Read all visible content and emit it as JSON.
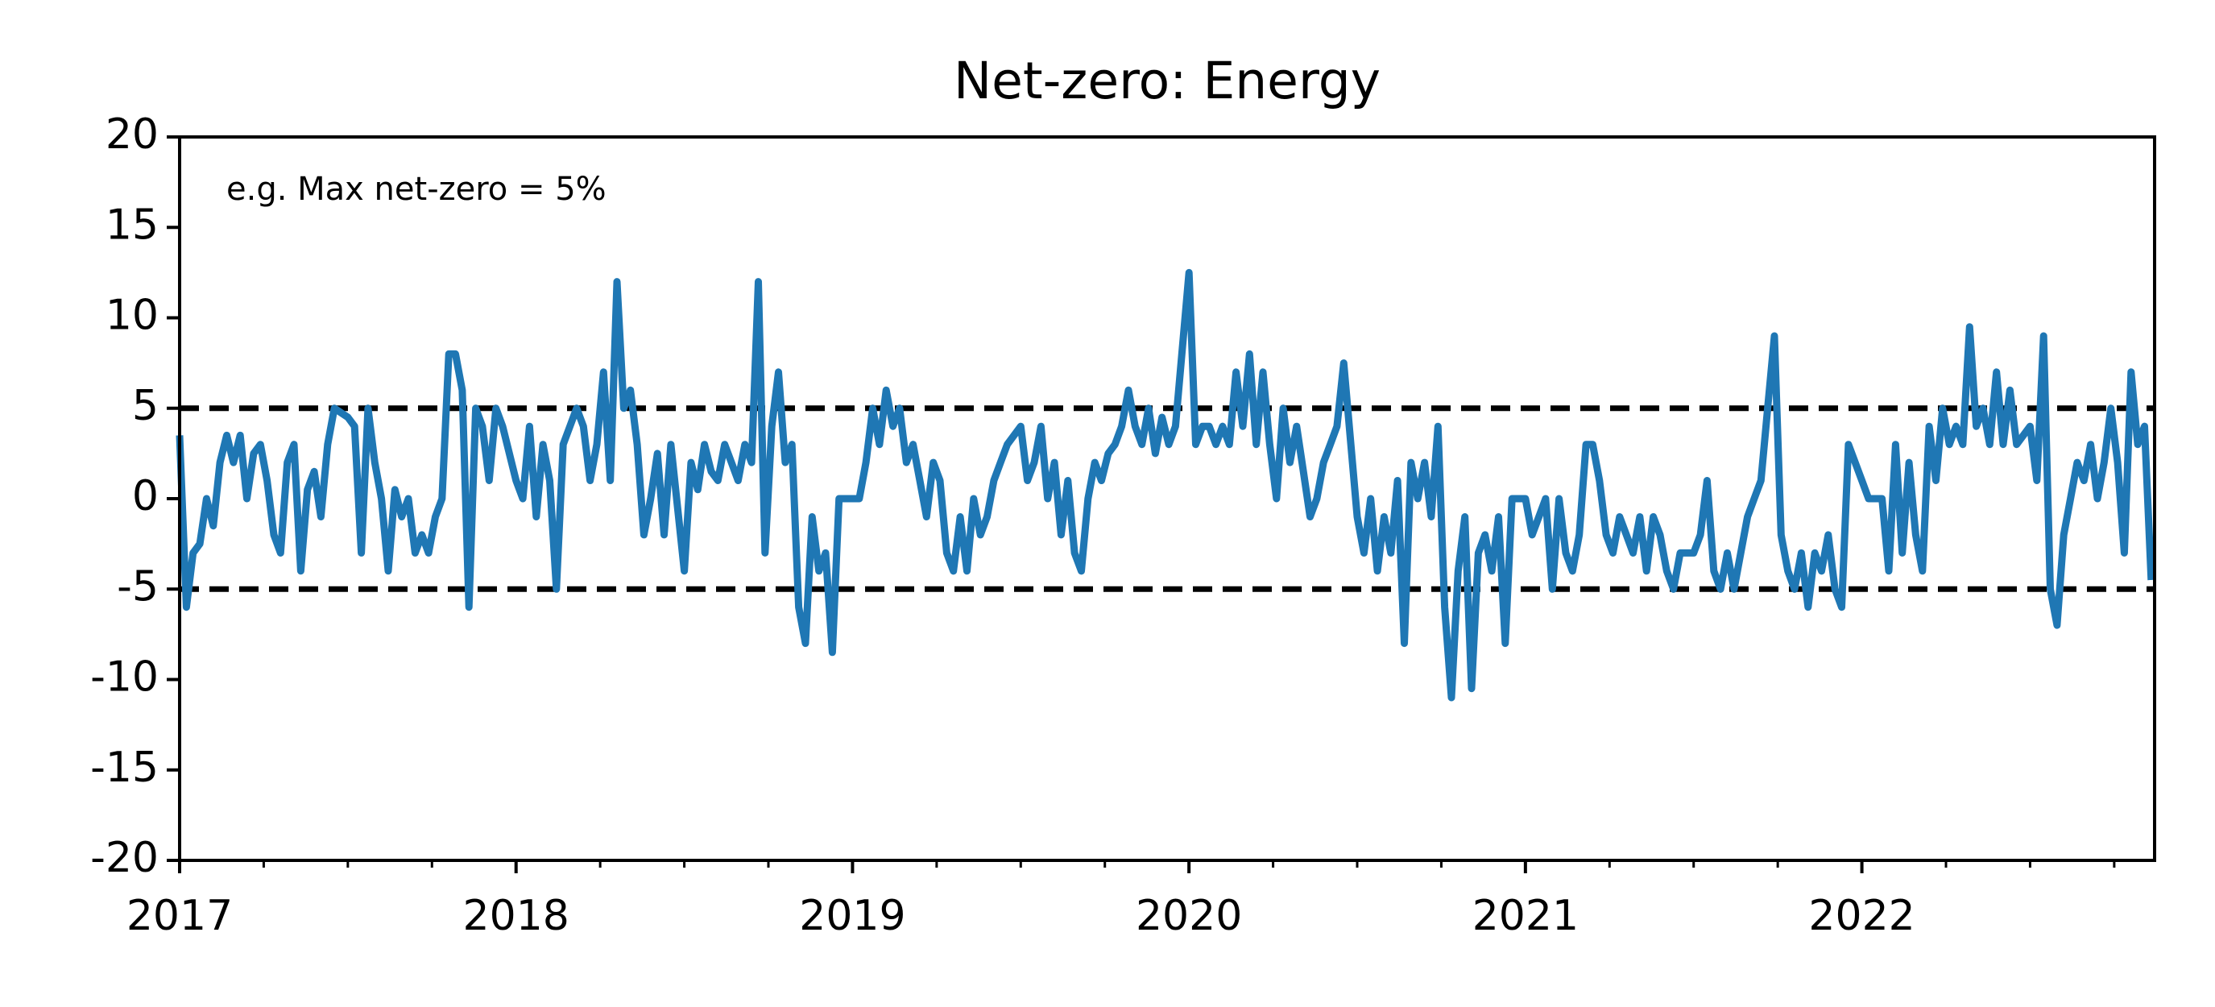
{
  "chart_data": {
    "type": "line",
    "title": "Net-zero: Energy",
    "annotation": "e.g. Max net-zero = 5%",
    "xlim": [
      2017,
      2022.87
    ],
    "xticks": [
      2017,
      2018,
      2019,
      2020,
      2021,
      2022
    ],
    "xminorticks": [
      2017.25,
      2017.5,
      2017.75,
      2018.25,
      2018.5,
      2018.75,
      2019.25,
      2019.5,
      2019.75,
      2020.25,
      2020.5,
      2020.75,
      2021.25,
      2021.5,
      2021.75,
      2022.25,
      2022.5,
      2022.75
    ],
    "ylim": [
      -20,
      20
    ],
    "yticks": [
      -20,
      -15,
      -10,
      -5,
      0,
      5,
      10,
      15,
      20
    ],
    "hlines": {
      "values": [
        5,
        -5
      ],
      "color": "#000000",
      "style": "dashed"
    },
    "series": [
      {
        "color": "#1f77b4",
        "x": [
          2017,
          2017.02,
          2017.04,
          2017.06,
          2017.08,
          2017.1,
          2017.12,
          2017.14,
          2017.16,
          2017.18,
          2017.2,
          2017.22,
          2017.24,
          2017.26,
          2017.28,
          2017.3,
          2017.32,
          2017.34,
          2017.36,
          2017.38,
          2017.4,
          2017.42,
          2017.44,
          2017.46,
          2017.5,
          2017.52,
          2017.54,
          2017.56,
          2017.58,
          2017.6,
          2017.62,
          2017.64,
          2017.66,
          2017.68,
          2017.7,
          2017.72,
          2017.74,
          2017.76,
          2017.78,
          2017.8,
          2017.82,
          2017.84,
          2017.86,
          2017.88,
          2017.9,
          2017.92,
          2017.94,
          2017.96,
          2018,
          2018.02,
          2018.04,
          2018.06,
          2018.08,
          2018.1,
          2018.12,
          2018.14,
          2018.16,
          2018.18,
          2018.2,
          2018.22,
          2018.24,
          2018.26,
          2018.28,
          2018.3,
          2018.32,
          2018.34,
          2018.36,
          2018.38,
          2018.4,
          2018.42,
          2018.44,
          2018.46,
          2018.5,
          2018.52,
          2018.54,
          2018.56,
          2018.58,
          2018.6,
          2018.62,
          2018.64,
          2018.66,
          2018.68,
          2018.7,
          2018.72,
          2018.74,
          2018.76,
          2018.78,
          2018.8,
          2018.82,
          2018.84,
          2018.86,
          2018.88,
          2018.9,
          2018.92,
          2018.94,
          2018.96,
          2019,
          2019.02,
          2019.04,
          2019.06,
          2019.08,
          2019.1,
          2019.12,
          2019.14,
          2019.16,
          2019.18,
          2019.2,
          2019.22,
          2019.24,
          2019.26,
          2019.28,
          2019.3,
          2019.32,
          2019.34,
          2019.36,
          2019.38,
          2019.4,
          2019.42,
          2019.44,
          2019.46,
          2019.5,
          2019.52,
          2019.54,
          2019.56,
          2019.58,
          2019.6,
          2019.62,
          2019.64,
          2019.66,
          2019.68,
          2019.7,
          2019.72,
          2019.74,
          2019.76,
          2019.78,
          2019.8,
          2019.82,
          2019.84,
          2019.86,
          2019.88,
          2019.9,
          2019.92,
          2019.94,
          2019.96,
          2020,
          2020.02,
          2020.04,
          2020.06,
          2020.08,
          2020.1,
          2020.12,
          2020.14,
          2020.16,
          2020.18,
          2020.2,
          2020.22,
          2020.24,
          2020.26,
          2020.28,
          2020.3,
          2020.32,
          2020.34,
          2020.36,
          2020.38,
          2020.4,
          2020.42,
          2020.44,
          2020.46,
          2020.5,
          2020.52,
          2020.54,
          2020.56,
          2020.58,
          2020.6,
          2020.62,
          2020.64,
          2020.66,
          2020.68,
          2020.7,
          2020.72,
          2020.74,
          2020.76,
          2020.78,
          2020.8,
          2020.82,
          2020.84,
          2020.86,
          2020.88,
          2020.9,
          2020.92,
          2020.94,
          2020.96,
          2021,
          2021.02,
          2021.04,
          2021.06,
          2021.08,
          2021.1,
          2021.12,
          2021.14,
          2021.16,
          2021.18,
          2021.2,
          2021.22,
          2021.24,
          2021.26,
          2021.28,
          2021.3,
          2021.32,
          2021.34,
          2021.36,
          2021.38,
          2021.4,
          2021.42,
          2021.44,
          2021.46,
          2021.5,
          2021.52,
          2021.54,
          2021.56,
          2021.58,
          2021.6,
          2021.62,
          2021.64,
          2021.66,
          2021.68,
          2021.7,
          2021.72,
          2021.74,
          2021.76,
          2021.78,
          2021.8,
          2021.82,
          2021.84,
          2021.86,
          2021.88,
          2021.9,
          2021.92,
          2021.94,
          2021.96,
          2022,
          2022.02,
          2022.04,
          2022.06,
          2022.08,
          2022.1,
          2022.12,
          2022.14,
          2022.16,
          2022.18,
          2022.2,
          2022.22,
          2022.24,
          2022.26,
          2022.28,
          2022.3,
          2022.32,
          2022.34,
          2022.36,
          2022.38,
          2022.4,
          2022.42,
          2022.44,
          2022.46,
          2022.5,
          2022.52,
          2022.54,
          2022.56,
          2022.58,
          2022.6,
          2022.62,
          2022.64,
          2022.66,
          2022.68,
          2022.7,
          2022.72,
          2022.74,
          2022.76,
          2022.78,
          2022.8,
          2022.82,
          2022.84,
          2022.86
        ],
        "values": [
          3.5,
          -6,
          -3,
          -2.5,
          0,
          -1.5,
          2,
          3.5,
          2,
          3.5,
          0,
          2.5,
          3,
          1,
          -2,
          -3,
          2,
          3,
          -4,
          0.5,
          1.5,
          -1,
          3,
          5,
          4.5,
          4,
          -3,
          5,
          2,
          0,
          -4,
          0.5,
          -1,
          0,
          -3,
          -2,
          -3,
          -1,
          0,
          8,
          8,
          6,
          -6,
          5,
          4,
          1,
          5,
          4,
          1,
          0,
          4,
          -1,
          3,
          1,
          -5,
          3,
          4,
          5,
          4,
          1,
          3,
          7,
          1,
          12,
          5,
          6,
          3,
          -2,
          0,
          2.5,
          -2,
          3,
          -4,
          2,
          0.5,
          3,
          1.5,
          1,
          3,
          2,
          1,
          3,
          2,
          12,
          -3,
          4,
          7,
          2,
          3,
          -6,
          -8,
          -1,
          -4,
          -3,
          -8.5,
          0,
          0,
          0,
          2,
          5,
          3,
          6,
          4,
          5,
          2,
          3,
          1,
          -1,
          2,
          1,
          -3,
          -4,
          -1,
          -4,
          0,
          -2,
          -1,
          1,
          2,
          3,
          4,
          1,
          2,
          4,
          0,
          2,
          -2,
          1,
          -3,
          -4,
          0,
          2,
          1,
          2.5,
          3,
          4,
          6,
          4,
          3,
          5,
          2.5,
          4.5,
          3,
          4,
          12.5,
          3,
          4,
          4,
          3,
          4,
          3,
          7,
          4,
          8,
          3,
          7,
          3,
          0,
          5,
          2,
          4,
          1.5,
          -1,
          0,
          2,
          3,
          4,
          7.5,
          -1,
          -3,
          0,
          -4,
          -1,
          -3,
          1,
          -8,
          2,
          0,
          2,
          -1,
          4,
          -6,
          -11,
          -4,
          -1,
          -10.5,
          -3,
          -2,
          -4,
          -1,
          -8,
          0,
          0,
          -2,
          -1,
          0,
          -5,
          0,
          -3,
          -4,
          -2,
          3,
          3,
          1,
          -2,
          -3,
          -1,
          -2,
          -3,
          -1,
          -4,
          -1,
          -2,
          -4,
          -5,
          -3,
          -3,
          -2,
          1,
          -4,
          -5,
          -3,
          -5,
          -3,
          -1,
          0,
          1,
          5,
          9,
          -2,
          -4,
          -5,
          -3,
          -6,
          -3,
          -4,
          -2,
          -5,
          -6,
          3,
          1,
          0,
          0,
          0,
          -4,
          3,
          -3,
          2,
          -2,
          -4,
          4,
          1,
          5,
          3,
          4,
          3,
          9.5,
          4,
          5,
          3,
          7,
          3,
          6,
          3,
          4,
          1,
          9,
          -5,
          -7,
          -2,
          0,
          2,
          1,
          3,
          0,
          2,
          5,
          2,
          -3,
          7,
          3,
          4,
          -4.5
        ]
      }
    ]
  }
}
